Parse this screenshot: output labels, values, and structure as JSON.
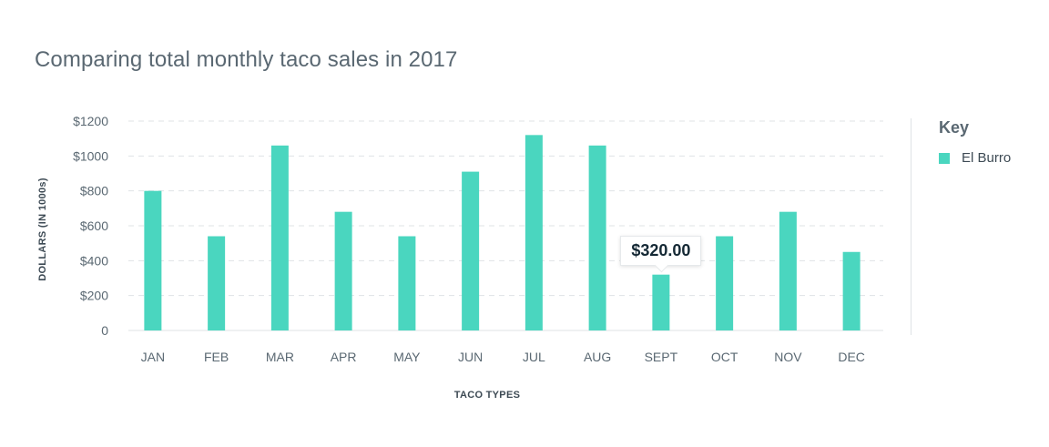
{
  "colors": {
    "bar": "#4ad6bf",
    "grid": "#dfe3e6",
    "text": "#5a6872"
  },
  "chart_data": {
    "type": "bar",
    "title": "Comparing total monthly taco sales in 2017",
    "xlabel": "TACO TYPES",
    "ylabel": "DOLLARS (IN 1000s)",
    "ylim": [
      0,
      1200
    ],
    "yticks": [
      0,
      200,
      400,
      600,
      800,
      1000,
      1200
    ],
    "ytick_labels": [
      "0",
      "$200",
      "$400",
      "$600",
      "$800",
      "$1000",
      "$1200"
    ],
    "categories": [
      "JAN",
      "FEB",
      "MAR",
      "APR",
      "MAY",
      "JUN",
      "JUL",
      "AUG",
      "SEPT",
      "OCT",
      "NOV",
      "DEC"
    ],
    "series": [
      {
        "name": "El Burro",
        "values": [
          800,
          540,
          1060,
          680,
          540,
          910,
          1120,
          1060,
          320,
          540,
          680,
          450
        ]
      }
    ],
    "grid": true,
    "legend": {
      "title": "Key",
      "position": "right"
    },
    "tooltip": {
      "category": "SEPT",
      "label": "$320.00"
    }
  }
}
